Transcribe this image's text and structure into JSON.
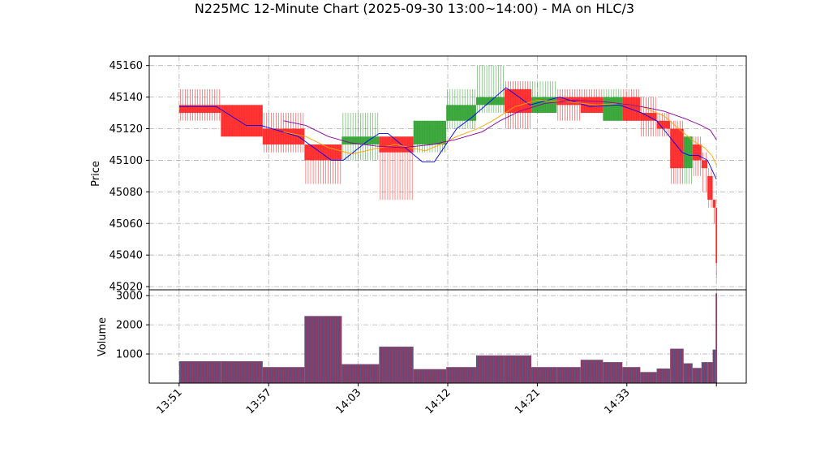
{
  "chart_data": {
    "type": "candlestick",
    "title": "N225MC 12-Minute Chart (2025-09-30 13:00~14:00) - MA on HLC/3",
    "price_panel": {
      "ylabel": "Price",
      "ylim": [
        45018,
        45166
      ],
      "yticks": [
        45020,
        45040,
        45060,
        45080,
        45100,
        45120,
        45140,
        45160
      ]
    },
    "volume_panel": {
      "ylabel": "Volume",
      "ylim": [
        0,
        3200
      ],
      "yticks": [
        1000,
        2000,
        3000
      ]
    },
    "xticks": [
      {
        "label": "13:51",
        "x": 0
      },
      {
        "label": "13:57",
        "x": 6
      },
      {
        "label": "14:03",
        "x": 12
      },
      {
        "label": "14:12",
        "x": 18
      },
      {
        "label": "14:21",
        "x": 24
      },
      {
        "label": "14:33",
        "x": 30
      },
      {
        "label": "",
        "x": 36
      }
    ],
    "xlim": [
      -2,
      38
    ],
    "colors": {
      "up": "#2ca02c",
      "down": "#ff2020",
      "vol_bar": "#8b3a62",
      "vol_edge": "#1f77b4",
      "ma1": "#0000ff",
      "ma2": "#ffa500",
      "ma3": "#8b00a0"
    },
    "candles": [
      {
        "x": 0,
        "w": 2.8,
        "o": 45135,
        "h": 45145,
        "l": 45125,
        "c": 45130,
        "v": 750
      },
      {
        "x": 2.8,
        "w": 2.8,
        "o": 45135,
        "h": 45135,
        "l": 45115,
        "c": 45115,
        "v": 750
      },
      {
        "x": 5.6,
        "w": 2.8,
        "o": 45120,
        "h": 45130,
        "l": 45105,
        "c": 45110,
        "v": 550
      },
      {
        "x": 8.4,
        "w": 2.5,
        "o": 45110,
        "h": 45110,
        "l": 45085,
        "c": 45100,
        "v": 2300
      },
      {
        "x": 10.9,
        "w": 2.5,
        "o": 45110,
        "h": 45130,
        "l": 45100,
        "c": 45115,
        "v": 650
      },
      {
        "x": 13.4,
        "w": 2.3,
        "o": 45115,
        "h": 45115,
        "l": 45075,
        "c": 45105,
        "v": 1250
      },
      {
        "x": 15.7,
        "w": 2.2,
        "o": 45110,
        "h": 45125,
        "l": 45105,
        "c": 45125,
        "v": 480
      },
      {
        "x": 17.9,
        "w": 2.0,
        "o": 45125,
        "h": 45145,
        "l": 45120,
        "c": 45135,
        "v": 550
      },
      {
        "x": 19.9,
        "w": 1.9,
        "o": 45135,
        "h": 45160,
        "l": 45130,
        "c": 45140,
        "v": 950
      },
      {
        "x": 21.8,
        "w": 1.8,
        "o": 45145,
        "h": 45150,
        "l": 45120,
        "c": 45130,
        "v": 950
      },
      {
        "x": 23.6,
        "w": 1.7,
        "o": 45130,
        "h": 45150,
        "l": 45130,
        "c": 45140,
        "v": 550
      },
      {
        "x": 25.3,
        "w": 1.6,
        "o": 45140,
        "h": 45145,
        "l": 45125,
        "c": 45135,
        "v": 550
      },
      {
        "x": 26.9,
        "w": 1.5,
        "o": 45140,
        "h": 45145,
        "l": 45130,
        "c": 45130,
        "v": 800
      },
      {
        "x": 28.4,
        "w": 1.3,
        "o": 45125,
        "h": 45145,
        "l": 45125,
        "c": 45140,
        "v": 720
      },
      {
        "x": 29.7,
        "w": 1.2,
        "o": 45140,
        "h": 45145,
        "l": 45125,
        "c": 45125,
        "v": 550
      },
      {
        "x": 30.9,
        "w": 1.1,
        "o": 45130,
        "h": 45140,
        "l": 45115,
        "c": 45125,
        "v": 380
      },
      {
        "x": 32.0,
        "w": 0.9,
        "o": 45125,
        "h": 45130,
        "l": 45115,
        "c": 45120,
        "v": 500
      },
      {
        "x": 32.9,
        "w": 0.9,
        "o": 45120,
        "h": 45125,
        "l": 45085,
        "c": 45095,
        "v": 1180
      },
      {
        "x": 33.8,
        "w": 0.6,
        "o": 45095,
        "h": 45115,
        "l": 45085,
        "c": 45115,
        "v": 680
      },
      {
        "x": 34.4,
        "w": 0.6,
        "o": 45110,
        "h": 45115,
        "l": 45090,
        "c": 45100,
        "v": 520
      },
      {
        "x": 35.0,
        "w": 0.4,
        "o": 45100,
        "h": 45105,
        "l": 45080,
        "c": 45095,
        "v": 720
      },
      {
        "x": 35.4,
        "w": 0.35,
        "o": 45090,
        "h": 45095,
        "l": 45070,
        "c": 45075,
        "v": 720
      },
      {
        "x": 35.75,
        "w": 0.2,
        "o": 45075,
        "h": 45075,
        "l": 45060,
        "c": 45070,
        "v": 1150
      },
      {
        "x": 35.95,
        "w": 0.1,
        "o": 45070,
        "h": 45070,
        "l": 45025,
        "c": 45035,
        "v": 3080
      }
    ],
    "ma": [
      {
        "color": "#0000ff",
        "points": [
          [
            0,
            45134
          ],
          [
            2.5,
            45134
          ],
          [
            4.5,
            45122
          ],
          [
            5.5,
            45122
          ],
          [
            8,
            45115
          ],
          [
            10.2,
            45100
          ],
          [
            11,
            45100
          ],
          [
            12.6,
            45112
          ],
          [
            13.4,
            45117
          ],
          [
            14,
            45117
          ],
          [
            15.4,
            45106
          ],
          [
            16.3,
            45099
          ],
          [
            17.1,
            45099
          ],
          [
            18.6,
            45120
          ],
          [
            19.6,
            45127
          ],
          [
            21.9,
            45146
          ],
          [
            23.5,
            45135
          ],
          [
            25.5,
            45140
          ],
          [
            27.5,
            45134
          ],
          [
            29.5,
            45135
          ],
          [
            31,
            45130
          ],
          [
            32,
            45125
          ],
          [
            32.6,
            45118
          ],
          [
            33.7,
            45105
          ],
          [
            34.2,
            45103
          ],
          [
            34.8,
            45103
          ],
          [
            35.4,
            45100
          ],
          [
            36,
            45088
          ]
        ]
      },
      {
        "color": "#ffa500",
        "points": [
          [
            7,
            45118
          ],
          [
            8.5,
            45115
          ],
          [
            10,
            45108
          ],
          [
            11.6,
            45104
          ],
          [
            13,
            45107
          ],
          [
            14.5,
            45110
          ],
          [
            16.5,
            45106
          ],
          [
            17.5,
            45110
          ],
          [
            18.6,
            45115
          ],
          [
            20,
            45120
          ],
          [
            21,
            45125
          ],
          [
            22.5,
            45134
          ],
          [
            24,
            45138
          ],
          [
            26,
            45137
          ],
          [
            28,
            45135
          ],
          [
            29.5,
            45136
          ],
          [
            31,
            45134
          ],
          [
            32.5,
            45128
          ],
          [
            33.6,
            45119
          ],
          [
            34.5,
            45112
          ],
          [
            35.2,
            45108
          ],
          [
            35.7,
            45103
          ],
          [
            36,
            45097
          ]
        ]
      },
      {
        "color": "#8b00a0",
        "points": [
          [
            7,
            45125
          ],
          [
            8.5,
            45122
          ],
          [
            10,
            45115
          ],
          [
            11.5,
            45111
          ],
          [
            13.2,
            45109
          ],
          [
            15,
            45108
          ],
          [
            17,
            45110
          ],
          [
            18.5,
            45113
          ],
          [
            20.3,
            45118
          ],
          [
            21.5,
            45125
          ],
          [
            22.8,
            45131
          ],
          [
            24.5,
            45136
          ],
          [
            26.5,
            45138
          ],
          [
            28.5,
            45137
          ],
          [
            30.3,
            45135
          ],
          [
            31.5,
            45133
          ],
          [
            32.5,
            45131
          ],
          [
            34,
            45126
          ],
          [
            35,
            45122
          ],
          [
            35.6,
            45119
          ],
          [
            36,
            45113
          ]
        ]
      }
    ]
  }
}
